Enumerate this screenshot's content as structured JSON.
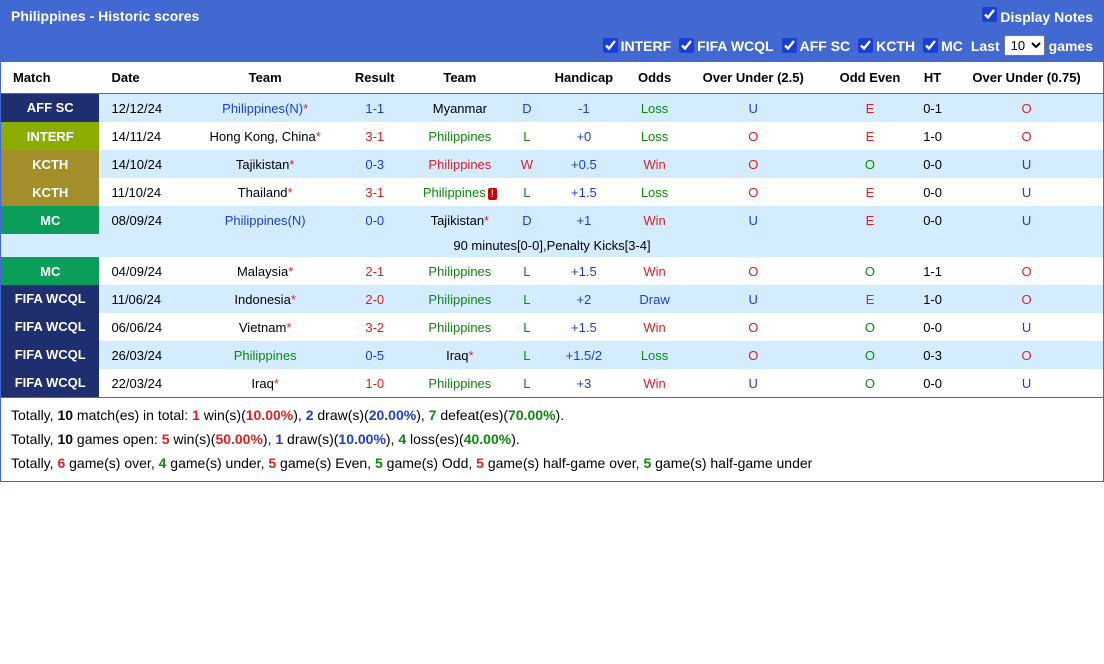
{
  "header": {
    "title": "Philippines - Historic scores",
    "displayNotes": "Display Notes"
  },
  "filters": {
    "items": [
      "INTERF",
      "FIFA WCQL",
      "AFF SC",
      "KCTH",
      "MC"
    ],
    "lastLabel": "Last",
    "gamesLabel": "games",
    "selectValue": "10"
  },
  "columns": [
    "Match",
    "Date",
    "Team",
    "Result",
    "Team",
    "",
    "Handicap",
    "Odds",
    "Over Under (2.5)",
    "Odd Even",
    "HT",
    "Over Under (0.75)"
  ],
  "badgeColors": {
    "AFF SC": "#1e2e6e",
    "INTERF": "#8aad00",
    "KCTH": "#a38e2a",
    "MC": "#0a9e5a",
    "FIFA WCQL": "#1e2e6e"
  },
  "rows": [
    {
      "badge": "AFF SC",
      "date": "12/12/24",
      "t1": "Philippines",
      "t1n": "(N)",
      "t1star": true,
      "t1c": "blue",
      "res": "1-1",
      "resc": "blue",
      "t2": "Myanmar",
      "t2star": false,
      "t2c": "black",
      "wld": "D",
      "wldc": "blue",
      "hcap": "-1",
      "hcapc": "blue",
      "odds": "Loss",
      "oddsc": "green",
      "ou": "U",
      "ouc": "blue",
      "oe": "E",
      "oec": "red",
      "ht": "0-1",
      "ou2": "O",
      "ou2c": "red"
    },
    {
      "badge": "INTERF",
      "date": "14/11/24",
      "t1": "Hong Kong, China",
      "t1star": true,
      "t1c": "black",
      "res": "3-1",
      "resc": "red",
      "t2": "Philippines",
      "t2star": false,
      "t2c": "green",
      "wld": "L",
      "wldc": "green",
      "hcap": "+0",
      "hcapc": "blue",
      "odds": "Loss",
      "oddsc": "green",
      "ou": "O",
      "ouc": "red",
      "oe": "E",
      "oec": "red",
      "ht": "1-0",
      "ou2": "O",
      "ou2c": "red"
    },
    {
      "badge": "KCTH",
      "date": "14/10/24",
      "t1": "Tajikistan",
      "t1star": true,
      "t1c": "black",
      "res": "0-3",
      "resc": "blue",
      "t2": "Philippines",
      "t2star": false,
      "t2c": "red",
      "wld": "W",
      "wldc": "red",
      "hcap": "+0.5",
      "hcapc": "blue",
      "odds": "Win",
      "oddsc": "red",
      "ou": "O",
      "ouc": "red",
      "oe": "O",
      "oec": "green",
      "ht": "0-0",
      "ou2": "U",
      "ou2c": "blue"
    },
    {
      "badge": "KCTH",
      "date": "11/10/24",
      "t1": "Thailand",
      "t1star": true,
      "t1c": "black",
      "res": "3-1",
      "resc": "red",
      "t2": "Philippines",
      "t2star": false,
      "t2c": "green",
      "t2box": true,
      "wld": "L",
      "wldc": "green",
      "hcap": "+1.5",
      "hcapc": "blue",
      "odds": "Loss",
      "oddsc": "green",
      "ou": "O",
      "ouc": "red",
      "oe": "E",
      "oec": "red",
      "ht": "0-0",
      "ou2": "U",
      "ou2c": "blue"
    },
    {
      "badge": "MC",
      "date": "08/09/24",
      "t1": "Philippines",
      "t1n": "(N)",
      "t1star": false,
      "t1c": "blue",
      "res": "0-0",
      "resc": "blue",
      "t2": "Tajikistan",
      "t2star": true,
      "t2c": "black",
      "wld": "D",
      "wldc": "blue",
      "hcap": "+1",
      "hcapc": "blue",
      "odds": "Win",
      "oddsc": "red",
      "ou": "U",
      "ouc": "blue",
      "oe": "E",
      "oec": "red",
      "ht": "0-0",
      "ou2": "U",
      "ou2c": "blue",
      "note": "90 minutes[0-0],Penalty Kicks[3-4]"
    },
    {
      "badge": "MC",
      "date": "04/09/24",
      "t1": "Malaysia",
      "t1star": true,
      "t1c": "black",
      "res": "2-1",
      "resc": "red",
      "t2": "Philippines",
      "t2star": false,
      "t2c": "green",
      "wld": "L",
      "wldc": "green",
      "hcap": "+1.5",
      "hcapc": "blue",
      "odds": "Win",
      "oddsc": "red",
      "ou": "O",
      "ouc": "red",
      "oe": "O",
      "oec": "green",
      "ht": "1-1",
      "ou2": "O",
      "ou2c": "red"
    },
    {
      "badge": "FIFA WCQL",
      "date": "11/06/24",
      "t1": "Indonesia",
      "t1star": true,
      "t1c": "black",
      "res": "2-0",
      "resc": "red",
      "t2": "Philippines",
      "t2star": false,
      "t2c": "green",
      "wld": "L",
      "wldc": "green",
      "hcap": "+2",
      "hcapc": "blue",
      "odds": "Draw",
      "oddsc": "blue",
      "ou": "U",
      "ouc": "blue",
      "oe": "E",
      "oec": "red",
      "ht": "1-0",
      "ou2": "O",
      "ou2c": "red"
    },
    {
      "badge": "FIFA WCQL",
      "date": "06/06/24",
      "t1": "Vietnam",
      "t1star": true,
      "t1c": "black",
      "res": "3-2",
      "resc": "red",
      "t2": "Philippines",
      "t2star": false,
      "t2c": "green",
      "wld": "L",
      "wldc": "green",
      "hcap": "+1.5",
      "hcapc": "blue",
      "odds": "Win",
      "oddsc": "red",
      "ou": "O",
      "ouc": "red",
      "oe": "O",
      "oec": "green",
      "ht": "0-0",
      "ou2": "U",
      "ou2c": "blue"
    },
    {
      "badge": "FIFA WCQL",
      "date": "26/03/24",
      "t1": "Philippines",
      "t1star": false,
      "t1c": "green",
      "res": "0-5",
      "resc": "blue",
      "t2": "Iraq",
      "t2star": true,
      "t2c": "black",
      "wld": "L",
      "wldc": "green",
      "hcap": "+1.5/2",
      "hcapc": "blue",
      "odds": "Loss",
      "oddsc": "green",
      "ou": "O",
      "ouc": "red",
      "oe": "O",
      "oec": "green",
      "ht": "0-3",
      "ou2": "O",
      "ou2c": "red"
    },
    {
      "badge": "FIFA WCQL",
      "date": "22/03/24",
      "t1": "Iraq",
      "t1star": true,
      "t1c": "black",
      "res": "1-0",
      "resc": "red",
      "t2": "Philippines",
      "t2star": false,
      "t2c": "green",
      "wld": "L",
      "wldc": "green",
      "hcap": "+3",
      "hcapc": "blue",
      "odds": "Win",
      "oddsc": "red",
      "ou": "U",
      "ouc": "blue",
      "oe": "O",
      "oec": "green",
      "ht": "0-0",
      "ou2": "U",
      "ou2c": "blue"
    }
  ],
  "summary": {
    "l1": {
      "p0": "Totally, ",
      "p1": "10",
      "p2": " match(es) in total: ",
      "p3": "1",
      "p4": " win(s)(",
      "p5": "10.00%",
      "p6": "), ",
      "p7": "2",
      "p8": " draw(s)(",
      "p9": "20.00%",
      "p10": "), ",
      "p11": "7",
      "p12": " defeat(es)(",
      "p13": "70.00%",
      "p14": ")."
    },
    "l2": {
      "p0": "Totally, ",
      "p1": "10",
      "p2": " games open: ",
      "p3": "5",
      "p4": " win(s)(",
      "p5": "50.00%",
      "p6": "), ",
      "p7": "1",
      "p8": " draw(s)(",
      "p9": "10.00%",
      "p10": "), ",
      "p11": "4",
      "p12": " loss(es)(",
      "p13": "40.00%",
      "p14": ")."
    },
    "l3": {
      "p0": "Totally, ",
      "p1": "6",
      "p2": " game(s) over, ",
      "p3": "4",
      "p4": " game(s) under, ",
      "p5": "5",
      "p6": " game(s) Even, ",
      "p7": "5",
      "p8": " game(s) Odd, ",
      "p9": "5",
      "p10": " game(s) half-game over, ",
      "p11": "5",
      "p12": " game(s) half-game under"
    }
  }
}
